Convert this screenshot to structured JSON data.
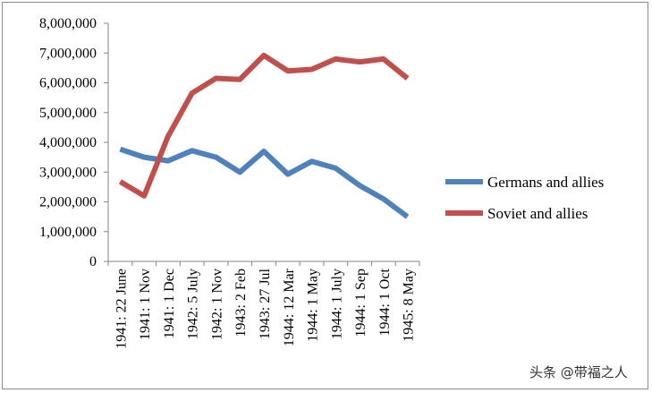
{
  "chart_data": {
    "type": "line",
    "title": "",
    "xlabel": "",
    "ylabel": "",
    "ylim": [
      0,
      8000000
    ],
    "yticks": [
      "0",
      "1,000,000",
      "2,000,000",
      "3,000,000",
      "4,000,000",
      "5,000,000",
      "6,000,000",
      "7,000,000",
      "8,000,000"
    ],
    "categories": [
      "1941: 22 June",
      "1941: 1 Nov",
      "1941: 1 Dec",
      "1942: 5 July",
      "1942: 1 Nov",
      "1943: 2 Feb",
      "1943: 27 Jul",
      "1944: 12 Mar",
      "1944: 1 May",
      "1944: 1 July",
      "1944: 1 Sep",
      "1944: 1 Oct",
      "1945: 8 May"
    ],
    "series": [
      {
        "name": "Germans and allies",
        "color": "#4f81bd",
        "values": [
          3767000,
          3500000,
          3380000,
          3720000,
          3500000,
          3000000,
          3700000,
          2930000,
          3360000,
          3130000,
          2550000,
          2100000,
          1500000
        ]
      },
      {
        "name": "Soviet and allies",
        "color": "#c0504d",
        "values": [
          2680000,
          2200000,
          4200000,
          5650000,
          6150000,
          6110000,
          6920000,
          6400000,
          6450000,
          6800000,
          6700000,
          6800000,
          6150000
        ]
      }
    ],
    "legend": "right",
    "grid": false
  },
  "watermark": "头条 @带福之人"
}
